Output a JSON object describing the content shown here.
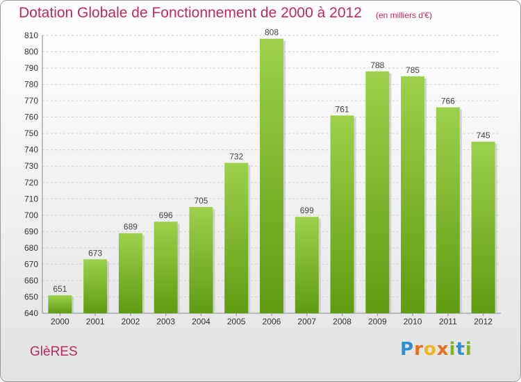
{
  "header": {
    "title": "Dotation Globale de Fonctionnement de 2000 à 2012",
    "unit": "(en milliers d'€)"
  },
  "footer": {
    "commune": "GlèRES",
    "logo": "Proxiti"
  },
  "colors": {
    "bar_top": "#9dd14b",
    "bar_bottom": "#5e9c12",
    "title": "#c0265f"
  },
  "chart_data": {
    "type": "bar",
    "title": "Dotation Globale de Fonctionnement de 2000 à 2012",
    "subtitle": "(en milliers d'€)",
    "xlabel": "",
    "ylabel": "",
    "categories": [
      "2000",
      "2001",
      "2002",
      "2003",
      "2004",
      "2005",
      "2006",
      "2007",
      "2008",
      "2009",
      "2010",
      "2011",
      "2012"
    ],
    "values": [
      651,
      673,
      689,
      696,
      705,
      732,
      808,
      699,
      761,
      788,
      785,
      766,
      745
    ],
    "ylim": [
      640,
      810
    ],
    "yticks": [
      640,
      650,
      660,
      670,
      680,
      690,
      700,
      710,
      720,
      730,
      740,
      750,
      760,
      770,
      780,
      790,
      800,
      810
    ],
    "grid": true,
    "legend": "none"
  }
}
